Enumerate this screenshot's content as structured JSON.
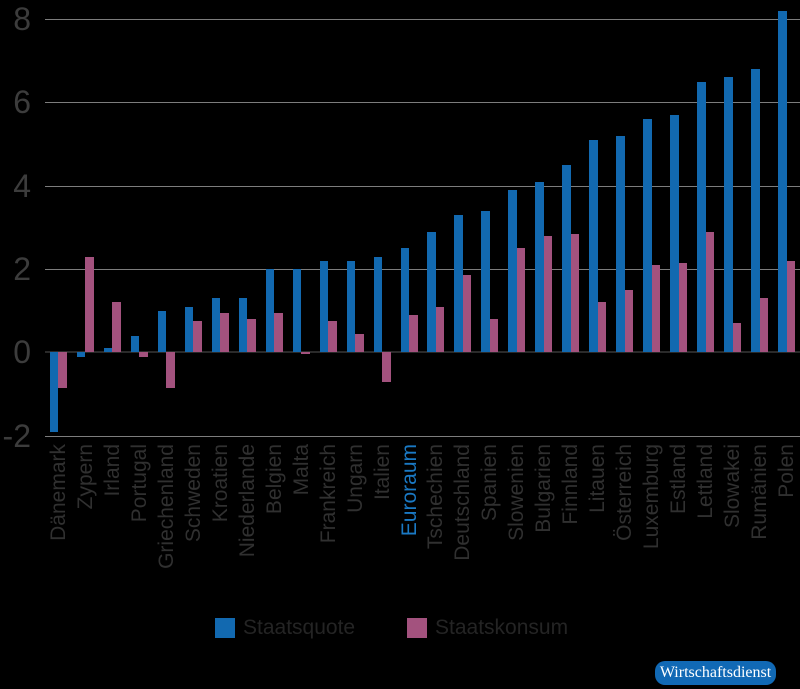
{
  "chart_data": {
    "type": "bar",
    "title": "",
    "xlabel": "",
    "ylabel": "",
    "categories": [
      "Dänemark",
      "Zypern",
      "Irland",
      "Portugal",
      "Griechenland",
      "Schweden",
      "Kroatien",
      "Niederlande",
      "Belgien",
      "Malta",
      "Frankreich",
      "Ungarn",
      "Italien",
      "Euroraum",
      "Tschechien",
      "Deutschland",
      "Spanien",
      "Slowenien",
      "Bulgarien",
      "Finnland",
      "Litauen",
      "Österreich",
      "Luxemburg",
      "Estland",
      "Lettland",
      "Slowakei",
      "Rumänien",
      "Polen"
    ],
    "series": [
      {
        "name": "Staatsquote",
        "color": "#1269b0",
        "values": [
          -1.9,
          -0.1,
          0.1,
          0.4,
          1.0,
          1.1,
          1.3,
          1.3,
          2.0,
          2.0,
          2.2,
          2.2,
          2.3,
          2.5,
          2.9,
          3.3,
          3.4,
          3.9,
          4.1,
          4.5,
          5.1,
          5.2,
          5.6,
          5.7,
          6.5,
          6.6,
          6.8,
          8.2
        ]
      },
      {
        "name": "Staatskonsum",
        "color": "#a3527e",
        "values": [
          -0.85,
          2.3,
          1.2,
          -0.1,
          -0.85,
          0.75,
          0.95,
          0.8,
          0.95,
          -0.05,
          0.75,
          0.45,
          -0.7,
          0.9,
          1.1,
          1.85,
          0.8,
          2.5,
          2.8,
          2.85,
          1.2,
          1.5,
          2.1,
          2.15,
          2.9,
          0.7,
          1.3,
          2.2
        ]
      }
    ],
    "ylim": [
      -2,
      8.45
    ],
    "yticks": [
      8,
      6,
      4,
      2,
      0,
      -2
    ],
    "grid": true,
    "legend_position": "bottom",
    "highlighted_category": "Euroraum",
    "highlight_color": "#1a79c4"
  },
  "legend": {
    "items": [
      {
        "label": "Staatsquote",
        "color": "#1269b0"
      },
      {
        "label": "Staatskonsum",
        "color": "#a3527e"
      }
    ]
  },
  "badge": {
    "label": "Wirtschaftsdienst",
    "bg": "#1169b5",
    "text_color": "#ffffff"
  },
  "colors": {
    "background": "#000000",
    "gridline": "#7d7d7d",
    "zero_line": "#2a2a2a",
    "tick_label": "#3c3c3c",
    "category_label": "#303030"
  }
}
